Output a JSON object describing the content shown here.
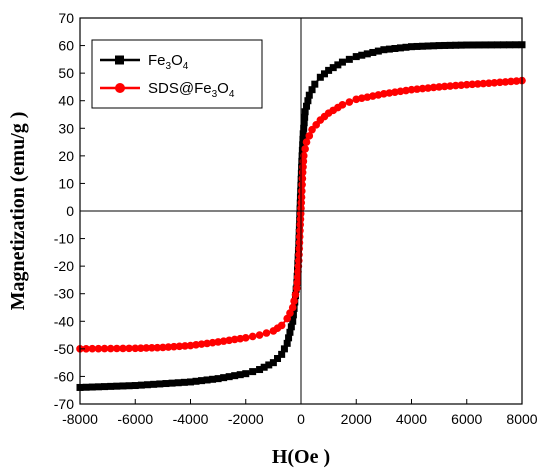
{
  "chart_data": {
    "type": "scatter",
    "xlabel": "H(Oe )",
    "ylabel": "Magnetization (emu/g )",
    "xlim": [
      -8000,
      8000
    ],
    "ylim": [
      -70,
      70
    ],
    "xticks": [
      -8000,
      -6000,
      -4000,
      -2000,
      0,
      2000,
      4000,
      6000,
      8000
    ],
    "yticks": [
      -70,
      -60,
      -50,
      -40,
      -30,
      -20,
      -10,
      0,
      10,
      20,
      30,
      40,
      50,
      60,
      70
    ],
    "xtick_labels": [
      "-8000",
      "-6000",
      "-4000",
      "-2000",
      "0",
      "2000",
      "4000",
      "6000",
      "8000"
    ],
    "ytick_labels": [
      "-70",
      "-60",
      "-50",
      "-40",
      "-30",
      "-20",
      "-10",
      "0",
      "10",
      "20",
      "30",
      "40",
      "50",
      "60",
      "70"
    ],
    "zero_lines": true,
    "grid": false,
    "legend_position": "top-left",
    "series": [
      {
        "name_parts": [
          [
            "Fe",
            "base"
          ],
          [
            "3",
            "sub"
          ],
          [
            "O",
            "base"
          ],
          [
            "4",
            "sub"
          ]
        ],
        "color": "#000000",
        "marker": "square",
        "points": [
          [
            -8000,
            -64.0
          ],
          [
            -6000,
            -63.3
          ],
          [
            -4000,
            -62.0
          ],
          [
            -3000,
            -60.8
          ],
          [
            -2000,
            -59.0
          ],
          [
            -1500,
            -57.5
          ],
          [
            -1000,
            -55.0
          ],
          [
            -700,
            -52.0
          ],
          [
            -500,
            -48.0
          ],
          [
            -300,
            -40.0
          ],
          [
            -150,
            -26.0
          ],
          [
            -80,
            -12.0
          ],
          [
            -20,
            5.0
          ],
          [
            30,
            18.0
          ],
          [
            80,
            28.0
          ],
          [
            150,
            36.0
          ],
          [
            300,
            42.0
          ],
          [
            500,
            46.0
          ],
          [
            700,
            48.5
          ],
          [
            1000,
            51.0
          ],
          [
            1500,
            54.0
          ],
          [
            2000,
            56.0
          ],
          [
            3000,
            58.5
          ],
          [
            4000,
            59.6
          ],
          [
            5000,
            60.0
          ],
          [
            6000,
            60.2
          ],
          [
            8000,
            60.3
          ]
        ]
      },
      {
        "name_parts": [
          [
            "SDS@Fe",
            "base"
          ],
          [
            "3",
            "sub"
          ],
          [
            "O",
            "base"
          ],
          [
            "4",
            "sub"
          ]
        ],
        "color": "#ff0000",
        "marker": "circle",
        "points": [
          [
            -8000,
            -50.0
          ],
          [
            -6000,
            -49.8
          ],
          [
            -5000,
            -49.5
          ],
          [
            -4000,
            -48.8
          ],
          [
            -3000,
            -47.5
          ],
          [
            -2000,
            -46.0
          ],
          [
            -1500,
            -45.0
          ],
          [
            -1000,
            -43.5
          ],
          [
            -700,
            -41.5
          ],
          [
            -500,
            -39.0
          ],
          [
            -300,
            -35.0
          ],
          [
            -150,
            -28.0
          ],
          [
            -80,
            -18.0
          ],
          [
            -30,
            -5.0
          ],
          [
            20,
            5.0
          ],
          [
            60,
            14.0
          ],
          [
            100,
            20.0
          ],
          [
            200,
            25.0
          ],
          [
            400,
            29.5
          ],
          [
            700,
            33.0
          ],
          [
            1000,
            35.5
          ],
          [
            1500,
            38.5
          ],
          [
            2000,
            40.5
          ],
          [
            3000,
            42.5
          ],
          [
            4000,
            44.0
          ],
          [
            5000,
            45.0
          ],
          [
            6000,
            45.8
          ],
          [
            7000,
            46.5
          ],
          [
            8000,
            47.3
          ]
        ]
      }
    ]
  }
}
